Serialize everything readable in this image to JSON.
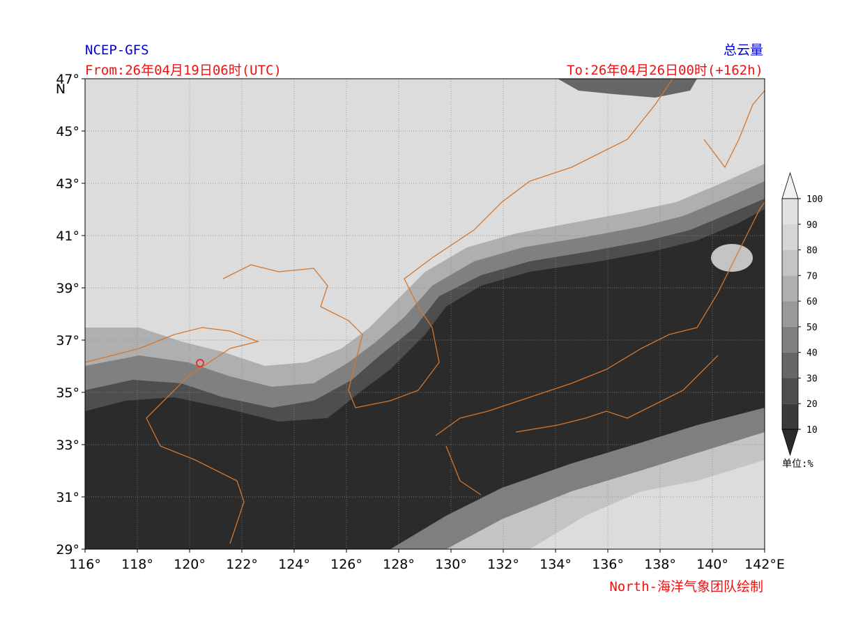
{
  "chart_data": {
    "type": "contour-map",
    "title_left": "NCEP-GFS",
    "title_right": "总云量",
    "subtitle_left": "From:26年04月19日06时(UTC)",
    "subtitle_right": "To:26年04月26日00时(+162h)",
    "credit": "North-海洋气象团队绘制",
    "y_axis_label": "N",
    "xlim": [
      116,
      142
    ],
    "ylim": [
      29,
      47
    ],
    "xticks": [
      {
        "value": 116,
        "label": "116°"
      },
      {
        "value": 118,
        "label": "118°"
      },
      {
        "value": 120,
        "label": "120°"
      },
      {
        "value": 122,
        "label": "122°"
      },
      {
        "value": 124,
        "label": "124°"
      },
      {
        "value": 126,
        "label": "126°"
      },
      {
        "value": 128,
        "label": "128°"
      },
      {
        "value": 130,
        "label": "130°"
      },
      {
        "value": 132,
        "label": "132°"
      },
      {
        "value": 134,
        "label": "134°"
      },
      {
        "value": 136,
        "label": "136°"
      },
      {
        "value": 138,
        "label": "138°"
      },
      {
        "value": 140,
        "label": "140°"
      },
      {
        "value": 142,
        "label": "142°E"
      }
    ],
    "yticks": [
      {
        "value": 29,
        "label": "29°"
      },
      {
        "value": 31,
        "label": "31°"
      },
      {
        "value": 33,
        "label": "33°"
      },
      {
        "value": 35,
        "label": "35°"
      },
      {
        "value": 37,
        "label": "37°"
      },
      {
        "value": 39,
        "label": "39°"
      },
      {
        "value": 41,
        "label": "41°"
      },
      {
        "value": 43,
        "label": "43°"
      },
      {
        "value": 45,
        "label": "45°"
      },
      {
        "value": 47,
        "label": "47°"
      }
    ],
    "grid": true,
    "colorbar": {
      "unit_label": "单位:%",
      "levels": [
        10,
        20,
        30,
        40,
        50,
        60,
        70,
        80,
        90,
        100
      ],
      "colors": [
        "#3a3a3a",
        "#4e4e4e",
        "#666666",
        "#7f7f7f",
        "#999999",
        "#afafaf",
        "#c4c4c4",
        "#d5d5d5",
        "#e1e1e1"
      ],
      "under_color": "#2b2b2b",
      "over_color": "#f2f2f2"
    },
    "marker_color": "#e83030",
    "coast_color": "#d2762e"
  }
}
